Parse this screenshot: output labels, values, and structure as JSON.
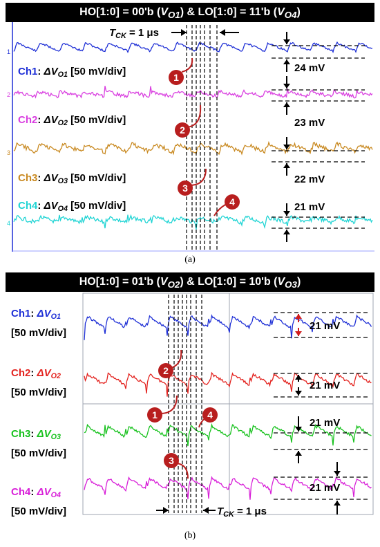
{
  "chart_data": [
    {
      "type": "line",
      "panel": "(a)",
      "title": {
        "pre": "HO[1:0] = 00'b (",
        "v1": "V",
        "s1": "O1",
        "mid": ")  &  LO[1:0] = 11'b (",
        "v2": "V",
        "s2": "O4",
        "post": ")"
      },
      "tck": {
        "pre": "T",
        "sub": "CK",
        "post": " = 1 μs"
      },
      "series": [
        {
          "name": {
            "ch": "Ch1",
            "sym": "ΔV",
            "sub": "O1",
            "unit": "[50 mV/div]"
          },
          "color": "#1e2fd6",
          "ripple_mV": "24 mV"
        },
        {
          "name": {
            "ch": "Ch2",
            "sym": "ΔV",
            "sub": "O2",
            "unit": "[50 mV/div]"
          },
          "color": "#d93fe0",
          "ripple_mV": "23 mV"
        },
        {
          "name": {
            "ch": "Ch3",
            "sym": "ΔV",
            "sub": "O3",
            "unit": "[50 mV/div]"
          },
          "color": "#c98a22",
          "ripple_mV": "22 mV"
        },
        {
          "name": {
            "ch": "Ch4",
            "sym": "ΔV",
            "sub": "O4",
            "unit": "[50 mV/div]"
          },
          "color": "#20d4d4",
          "ripple_mV": "21 mV"
        }
      ],
      "markers": [
        "1",
        "2",
        "3",
        "4"
      ],
      "channel_tags": [
        "1",
        "2",
        "3",
        "4"
      ]
    },
    {
      "type": "line",
      "panel": "(b)",
      "title": {
        "pre": "HO[1:0] = 01'b (",
        "v1": "V",
        "s1": "O2",
        "mid": ")  &  LO[1:0] = 10'b (",
        "v2": "V",
        "s2": "O3",
        "post": ")"
      },
      "tck": {
        "pre": "T",
        "sub": "CK",
        "post": " = 1 μs"
      },
      "series": [
        {
          "name": {
            "ch": "Ch1",
            "sym": "ΔV",
            "sub": "O1",
            "unit": "[50 mV/div]"
          },
          "color": "#1e2fd6",
          "ripple_mV": "21 mV"
        },
        {
          "name": {
            "ch": "Ch2",
            "sym": "ΔV",
            "sub": "O2",
            "unit": "[50 mV/div]"
          },
          "color": "#e3231f",
          "ripple_mV": "21 mV"
        },
        {
          "name": {
            "ch": "Ch3",
            "sym": "ΔV",
            "sub": "O3",
            "unit": "[50 mV/div]"
          },
          "color": "#18c21e",
          "ripple_mV": "21 mV"
        },
        {
          "name": {
            "ch": "Ch4",
            "sym": "ΔV",
            "sub": "O4",
            "unit": "[50 mV/div]"
          },
          "color": "#d81fd8",
          "ripple_mV": "21 mV"
        }
      ],
      "markers": [
        "1",
        "2",
        "3",
        "4"
      ],
      "grid": true
    }
  ],
  "captions": {
    "a": "(a)",
    "b": "(b)"
  },
  "colors": {
    "marker": "#b81e1e",
    "tracker_b_ch1": "#d01c1c"
  }
}
